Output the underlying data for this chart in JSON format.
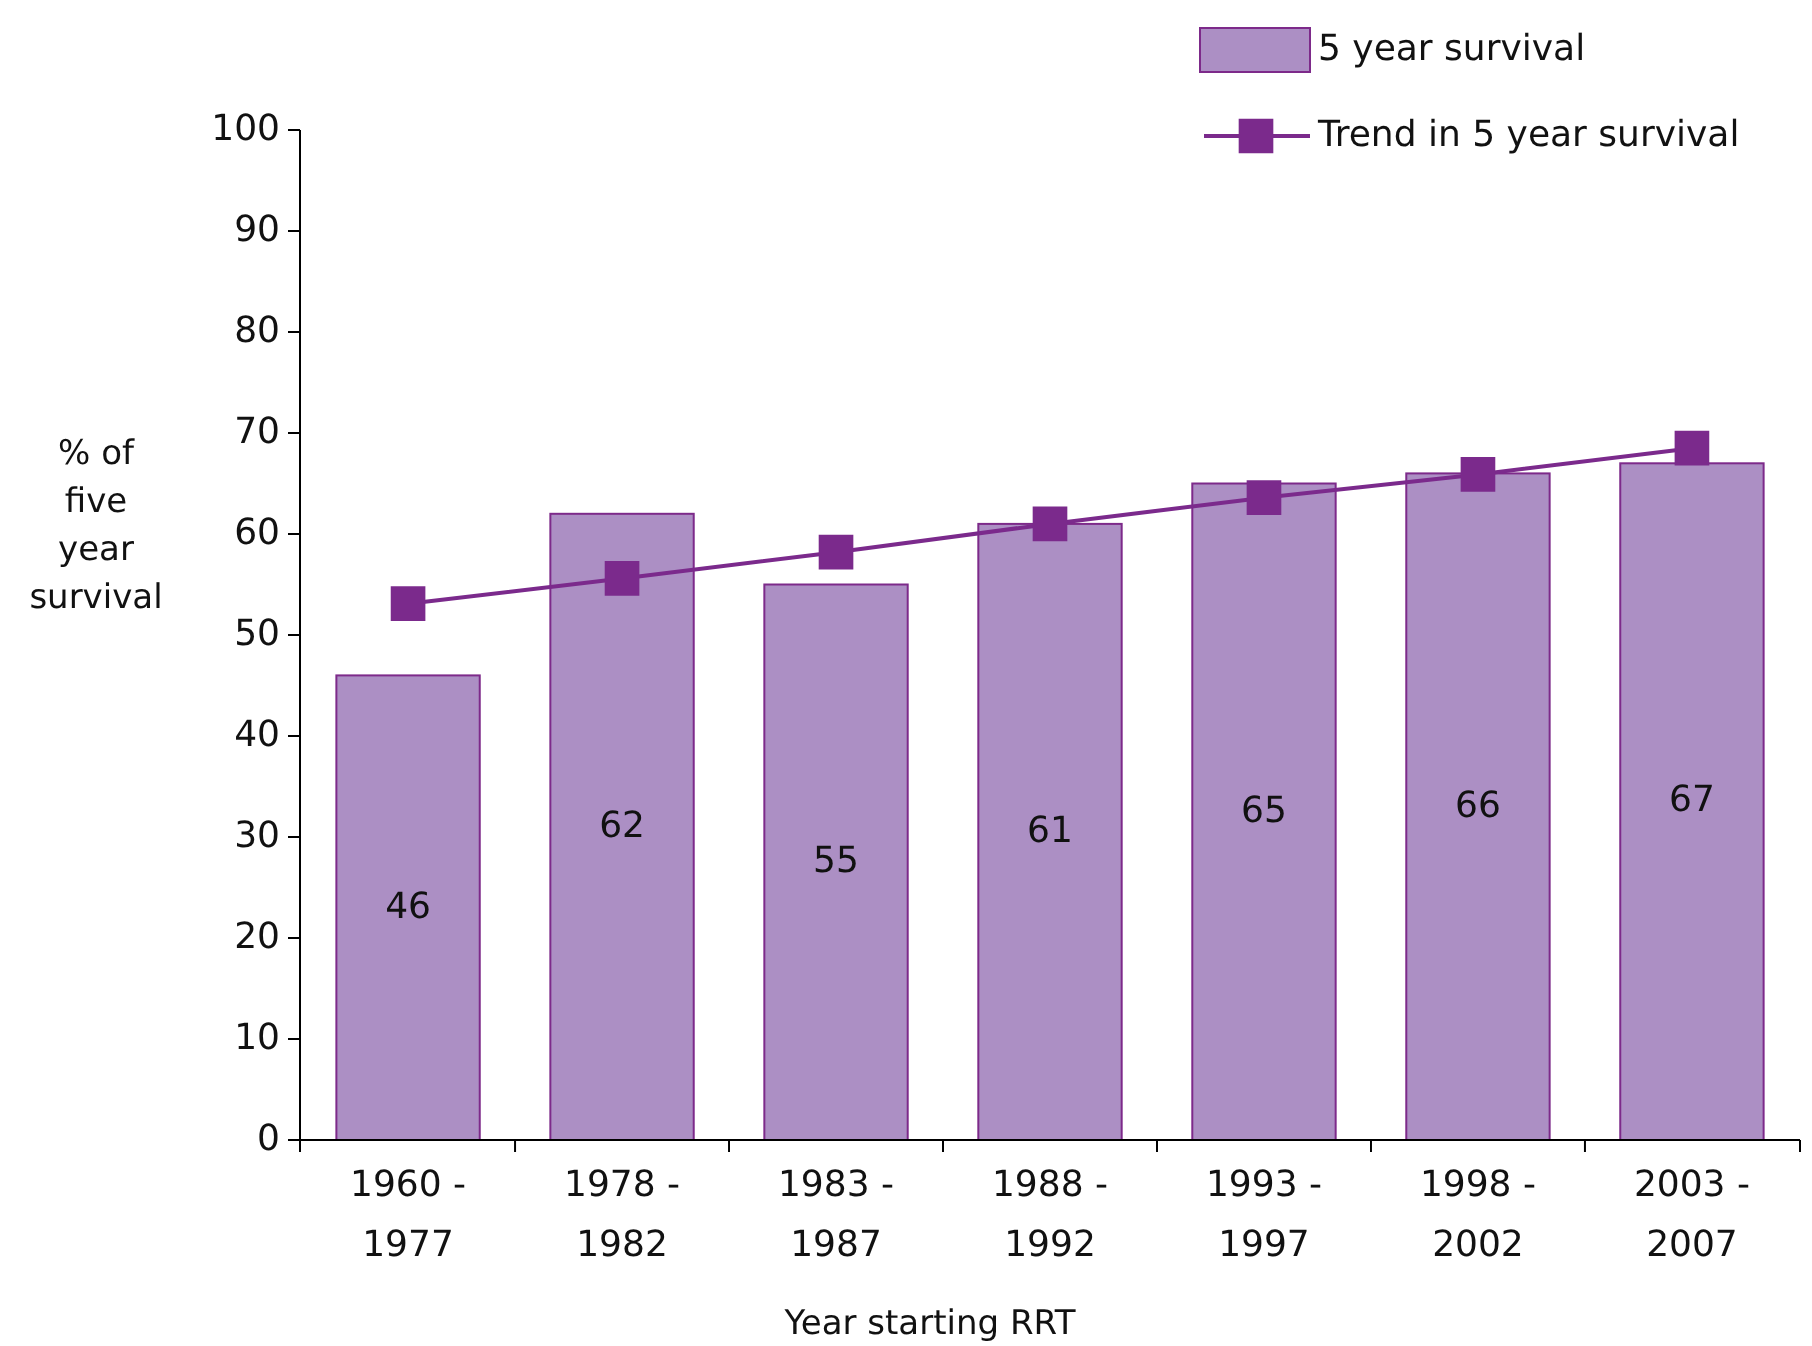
{
  "chart_data": {
    "type": "bar",
    "xlabel": "Year starting RRT",
    "ylabel": "% of five year survival",
    "categories": [
      "1960 - 1977",
      "1978 - 1982",
      "1983 - 1987",
      "1988 - 1992",
      "1993 - 1997",
      "1998 - 2002",
      "2003 - 2007"
    ],
    "series": [
      {
        "name": "5 year survival",
        "color": "#ac8fc4",
        "values": [
          46,
          62,
          55,
          61,
          65,
          66,
          67
        ],
        "value_labels": [
          "46",
          "62",
          "55",
          "61",
          "65",
          "66",
          "67"
        ]
      },
      {
        "name": "Trend in 5  year survival",
        "type": "line",
        "color": "#7b2a8c",
        "marker": "square",
        "values": [
          53.1,
          55.6,
          58.2,
          61.0,
          63.6,
          65.9,
          68.5
        ]
      }
    ],
    "ylim": [
      0,
      100
    ],
    "yticks": [
      0,
      10,
      20,
      30,
      40,
      50,
      60,
      70,
      80,
      90,
      100
    ],
    "grid": false,
    "legend": "top right"
  }
}
